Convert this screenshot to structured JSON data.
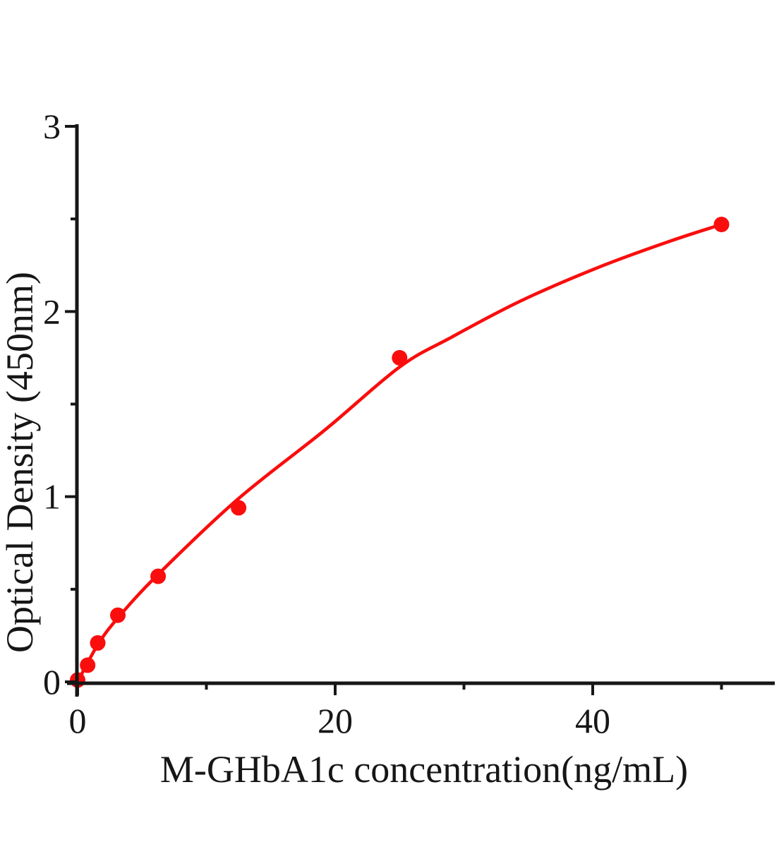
{
  "figure": {
    "background": "#ffffff"
  },
  "chart_data": {
    "type": "scatter",
    "title": "",
    "xlabel": "M-GHbA1c concentration(ng/mL)",
    "ylabel": "Optical Density (450nm)",
    "xlim": [
      0,
      54.2
    ],
    "ylim": [
      0,
      3
    ],
    "x_major_ticks": [
      0,
      20,
      40
    ],
    "x_minor_ticks": [
      10,
      30,
      50
    ],
    "y_major_ticks": [
      0,
      1,
      2,
      3
    ],
    "y_minor_ticks": [
      0.5,
      1.5,
      2.5
    ],
    "grid": false,
    "legend_position": "none",
    "axis_color": "#161616",
    "series_color": "#fa0d0d",
    "series": [
      {
        "name": "standard-points",
        "type": "scatter",
        "marker": "filled-circle",
        "color": "#fa0d0d",
        "points": [
          {
            "x": 0,
            "y": 0.01
          },
          {
            "x": 0.78,
            "y": 0.09
          },
          {
            "x": 1.56,
            "y": 0.21
          },
          {
            "x": 3.125,
            "y": 0.36
          },
          {
            "x": 6.25,
            "y": 0.57
          },
          {
            "x": 12.5,
            "y": 0.94
          },
          {
            "x": 25,
            "y": 1.75
          },
          {
            "x": 50,
            "y": 2.47
          }
        ]
      },
      {
        "name": "fitted-curve",
        "type": "line",
        "color": "#fa0d0d",
        "points": [
          {
            "x": 0,
            "y": 0.0
          },
          {
            "x": 1.56,
            "y": 0.2
          },
          {
            "x": 3.125,
            "y": 0.345
          },
          {
            "x": 6.25,
            "y": 0.58
          },
          {
            "x": 12.5,
            "y": 0.99
          },
          {
            "x": 19.2,
            "y": 1.36
          },
          {
            "x": 25,
            "y": 1.7
          },
          {
            "x": 29,
            "y": 1.86
          },
          {
            "x": 34.5,
            "y": 2.06
          },
          {
            "x": 40.5,
            "y": 2.24
          },
          {
            "x": 46,
            "y": 2.38
          },
          {
            "x": 50,
            "y": 2.47
          }
        ]
      }
    ]
  }
}
